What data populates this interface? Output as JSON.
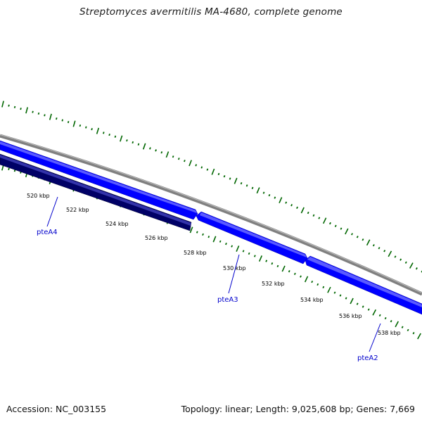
{
  "title": "Streptomyces avermitilis MA-4680, complete genome",
  "footer": {
    "accession": "Accession: NC_003155",
    "topology": "Topology: linear; Length: 9,025,608 bp; Genes: 7,669"
  },
  "colors": {
    "backbone": "#808080",
    "forward_gene": "#0000ff",
    "forward_gene_highlight": "#5a5aff",
    "reverse_gene": "#000066",
    "reverse_gene_highlight": "#3333aa",
    "gc_ticks": "#006600",
    "gene_label": "#0000cc"
  },
  "scale_labels": [
    "520 kbp",
    "522 kbp",
    "524 kbp",
    "526 kbp",
    "528 kbp",
    "530 kbp",
    "532 kbp",
    "534 kbp",
    "536 kbp",
    "538 kbp"
  ],
  "gene_labels": [
    "pteA4",
    "pteA3",
    "pteA2"
  ]
}
